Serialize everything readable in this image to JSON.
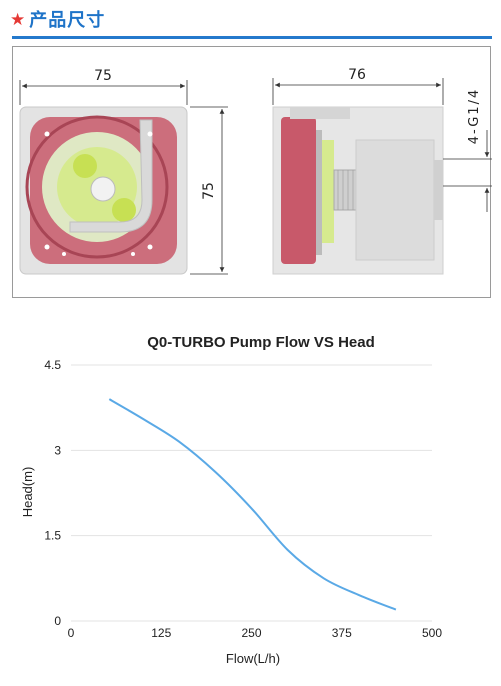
{
  "header": {
    "star_icon": "star-icon",
    "title": "产品尺寸",
    "title_color": "#1e73c8",
    "accent_color": "#e53935"
  },
  "dimensions": {
    "front_width": "75",
    "front_height": "75",
    "side_width": "76",
    "thread_label": "4-G1/4"
  },
  "chart_data": {
    "type": "line",
    "title": "Q0-TURBO Pump Flow VS Head",
    "xlabel": "Flow(L/h)",
    "ylabel": "Head(m)",
    "xlim": [
      0,
      500
    ],
    "ylim": [
      0,
      4.5
    ],
    "x_ticks": [
      0,
      125,
      250,
      375,
      500
    ],
    "x_tick_labels": [
      "0",
      "125",
      "250",
      "375",
      "500"
    ],
    "y_ticks": [
      0,
      1.5,
      3,
      4.5
    ],
    "y_tick_labels": [
      "0",
      "1.5",
      "3",
      "4.5"
    ],
    "grid": "horizontal",
    "line_color": "#5aa9e6",
    "series": [
      {
        "x": [
          53,
          100,
          150,
          200,
          250,
          300,
          350,
          400,
          450
        ],
        "y": [
          3.9,
          3.55,
          3.15,
          2.62,
          1.98,
          1.25,
          0.75,
          0.45,
          0.2
        ]
      }
    ]
  }
}
